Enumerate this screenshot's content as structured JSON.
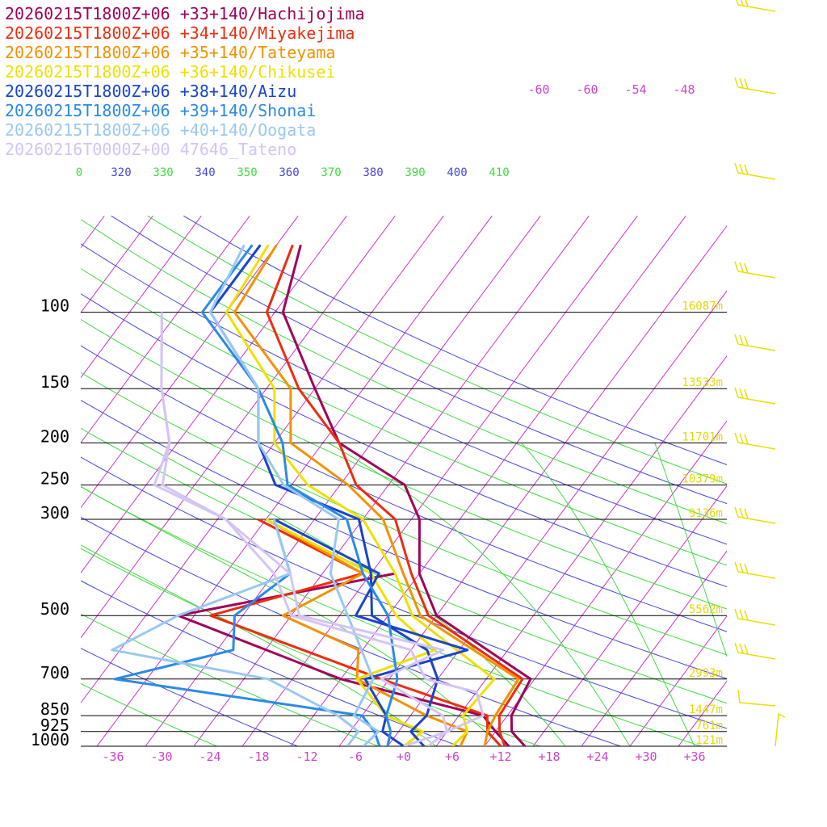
{
  "chart_data": {
    "type": "line",
    "subtype": "skew-T log-p sounding",
    "x_axis": {
      "label": "",
      "unit": "°C",
      "ticks": [
        -36,
        -30,
        -24,
        -18,
        -12,
        -6,
        0,
        6,
        12,
        18,
        24,
        30,
        36
      ],
      "tick_labels": [
        "-36",
        "-30",
        "-24",
        "-18",
        "-12",
        "-6",
        "+0",
        "+6",
        "+12",
        "+18",
        "+24",
        "+30",
        "+36"
      ],
      "range_at_bottom": [
        -40,
        40
      ]
    },
    "y_axis": {
      "label": "",
      "unit": "hPa",
      "scale": "log",
      "range": [
        1000,
        70
      ],
      "pressure_levels": [
        100,
        150,
        200,
        250,
        300,
        500,
        700,
        850,
        925,
        1000
      ],
      "pressure_labels": [
        "100",
        "150",
        "200",
        "250",
        "300",
        "500",
        "700",
        "850",
        "925",
        "1000"
      ]
    },
    "grid": true,
    "isotherm_top_labels": [
      "-60",
      "-60",
      "-54",
      "-48"
    ],
    "theta_labels": {
      "values": [
        "0",
        "320",
        "330",
        "340",
        "350",
        "360",
        "370",
        "380",
        "390",
        "400",
        "410"
      ],
      "colors": [
        "#3fdc3f",
        "#4646dd",
        "#3fdc3f",
        "#4646dd",
        "#3fdc3f",
        "#4646dd",
        "#3fdc3f",
        "#4646dd",
        "#3fdc3f",
        "#4646dd",
        "#3fdc3f"
      ]
    },
    "height_labels": [
      {
        "p": 100,
        "text": "16087m"
      },
      {
        "p": 150,
        "text": "13533m"
      },
      {
        "p": 200,
        "text": "11701m"
      },
      {
        "p": 250,
        "text": "10379m"
      },
      {
        "p": 300,
        "text": "9136m"
      },
      {
        "p": 500,
        "text": "5562m"
      },
      {
        "p": 700,
        "text": "2993m"
      },
      {
        "p": 850,
        "text": "1447m"
      },
      {
        "p": 925,
        "text": "761m"
      },
      {
        "p": 1000,
        "text": "121m"
      }
    ],
    "series": [
      {
        "name": "20260215T1800Z+06 +33+140/Hachijojima",
        "color": "#a0005a",
        "temperature": [
          [
            1000,
            15
          ],
          [
            925,
            12
          ],
          [
            850,
            10.5
          ],
          [
            700,
            9.5
          ],
          [
            500,
            -8
          ],
          [
            400,
            -14
          ],
          [
            300,
            -19
          ],
          [
            250,
            -24
          ],
          [
            200,
            -36
          ],
          [
            150,
            -44
          ],
          [
            100,
            -55
          ],
          [
            70,
            -59
          ]
        ],
        "dewpoint": [
          [
            1000,
            13
          ],
          [
            925,
            10
          ],
          [
            850,
            7
          ],
          [
            700,
            -14
          ],
          [
            500,
            -40
          ],
          [
            400,
            -17
          ]
        ]
      },
      {
        "name": "20260215T1800Z+06 +34+140/Miyakejima",
        "color": "#ee2c10",
        "temperature": [
          [
            1000,
            12.5
          ],
          [
            925,
            10.5
          ],
          [
            850,
            9
          ],
          [
            700,
            8.5
          ],
          [
            500,
            -9
          ],
          [
            400,
            -15
          ],
          [
            300,
            -22
          ],
          [
            250,
            -30
          ],
          [
            200,
            -36
          ],
          [
            150,
            -46
          ],
          [
            100,
            -57
          ],
          [
            70,
            -60
          ]
        ],
        "dewpoint": [
          [
            1000,
            12
          ],
          [
            925,
            9
          ],
          [
            850,
            7.5
          ],
          [
            700,
            -9
          ],
          [
            500,
            -36
          ],
          [
            400,
            -21
          ],
          [
            300,
            -39
          ]
        ]
      },
      {
        "name": "20260215T1800Z+06 +35+140/Tateyama",
        "color": "#f39200",
        "temperature": [
          [
            1000,
            10
          ],
          [
            925,
            9
          ],
          [
            850,
            8.5
          ],
          [
            700,
            8
          ],
          [
            500,
            -10
          ],
          [
            400,
            -16
          ],
          [
            300,
            -23.5
          ],
          [
            250,
            -31
          ],
          [
            200,
            -42
          ],
          [
            150,
            -47
          ],
          [
            100,
            -61
          ],
          [
            70,
            -62
          ]
        ],
        "dewpoint": [
          [
            1000,
            7
          ],
          [
            925,
            6.5
          ],
          [
            850,
            0
          ],
          [
            700,
            -12
          ],
          [
            600,
            -14.5
          ],
          [
            500,
            -27
          ],
          [
            400,
            -21
          ],
          [
            300,
            -38
          ]
        ]
      },
      {
        "name": "20260215T1800Z+06 +36+140/Chikusei",
        "color": "#f0e000",
        "temperature": [
          [
            1000,
            6
          ],
          [
            925,
            6.5
          ],
          [
            850,
            4.5
          ],
          [
            700,
            5
          ],
          [
            500,
            -11
          ],
          [
            400,
            -17
          ],
          [
            300,
            -26
          ],
          [
            250,
            -36
          ],
          [
            200,
            -44
          ],
          [
            150,
            -49
          ],
          [
            100,
            -62
          ],
          [
            70,
            -63
          ]
        ],
        "dewpoint": [
          [
            1000,
            0
          ],
          [
            925,
            1
          ],
          [
            850,
            -5
          ],
          [
            700,
            -12
          ],
          [
            600,
            -5
          ],
          [
            500,
            -13
          ],
          [
            400,
            -20
          ],
          [
            300,
            -38
          ]
        ]
      },
      {
        "name": "20260215T1800Z+06 +38+140/Aizu",
        "color": "#1a44cc",
        "temperature": [
          [
            1000,
            2.5
          ],
          [
            925,
            -0.5
          ],
          [
            850,
            0
          ],
          [
            700,
            -2
          ],
          [
            600,
            -6
          ],
          [
            500,
            -16
          ],
          [
            400,
            -20
          ],
          [
            300,
            -26.5
          ],
          [
            250,
            -40
          ],
          [
            200,
            -46
          ],
          [
            150,
            -51
          ],
          [
            100,
            -64
          ],
          [
            70,
            -64
          ]
        ],
        "dewpoint": [
          [
            1000,
            0
          ],
          [
            925,
            -4
          ],
          [
            850,
            -5
          ],
          [
            700,
            -11
          ],
          [
            600,
            -1
          ],
          [
            500,
            -18
          ],
          [
            400,
            -19
          ],
          [
            300,
            -37
          ]
        ]
      },
      {
        "name": "20260215T1800Z+06 +39+140/Shonai",
        "color": "#2a8ae8",
        "temperature": [
          [
            1000,
            -2
          ],
          [
            925,
            -3
          ],
          [
            850,
            -5
          ],
          [
            700,
            -7
          ],
          [
            500,
            -14
          ],
          [
            400,
            -21
          ],
          [
            300,
            -28
          ],
          [
            250,
            -38.5
          ],
          [
            200,
            -43
          ],
          [
            150,
            -51
          ],
          [
            100,
            -65
          ],
          [
            70,
            -65
          ]
        ],
        "dewpoint": [
          [
            1000,
            -3
          ],
          [
            925,
            -5
          ],
          [
            850,
            -8
          ],
          [
            700,
            -42
          ],
          [
            600,
            -30
          ],
          [
            500,
            -33
          ],
          [
            400,
            -30
          ],
          [
            300,
            -37
          ]
        ]
      },
      {
        "name": "20260215T1800Z+06 +40+140/Oogata",
        "color": "#99c8f2",
        "temperature": [
          [
            1000,
            -5
          ],
          [
            925,
            -4.5
          ],
          [
            850,
            -9
          ],
          [
            700,
            -10
          ],
          [
            500,
            -19
          ],
          [
            400,
            -25
          ],
          [
            300,
            -29
          ],
          [
            250,
            -39
          ],
          [
            200,
            -46
          ],
          [
            150,
            -51
          ],
          [
            100,
            -64
          ],
          [
            70,
            -66
          ]
        ],
        "dewpoint": [
          [
            1000,
            -7
          ],
          [
            925,
            -7
          ],
          [
            850,
            -11
          ],
          [
            700,
            -23
          ],
          [
            600,
            -45
          ],
          [
            500,
            -40
          ],
          [
            400,
            -30
          ],
          [
            300,
            -37
          ]
        ]
      },
      {
        "name": "20260216T0000Z+00 47646_Tateno",
        "color": "#d4c4f4",
        "temperature": [
          [
            1000,
            3
          ],
          [
            925,
            4
          ],
          [
            850,
            7
          ],
          [
            750,
            4
          ],
          [
            700,
            -3.5
          ],
          [
            600,
            -8
          ],
          [
            500,
            -26
          ],
          [
            400,
            -32
          ],
          [
            300,
            -43
          ],
          [
            250,
            -54
          ],
          [
            200,
            -57
          ],
          [
            150,
            -63
          ],
          [
            100,
            -70
          ]
        ],
        "dewpoint": [
          [
            1000,
            0
          ],
          [
            925,
            4
          ],
          [
            850,
            2
          ],
          [
            700,
            -9
          ],
          [
            600,
            -4
          ],
          [
            500,
            -25
          ],
          [
            400,
            -30
          ],
          [
            300,
            -43
          ],
          [
            250,
            -55
          ],
          [
            200,
            -57
          ],
          [
            150,
            -63
          ],
          [
            100,
            -70
          ]
        ]
      }
    ]
  }
}
